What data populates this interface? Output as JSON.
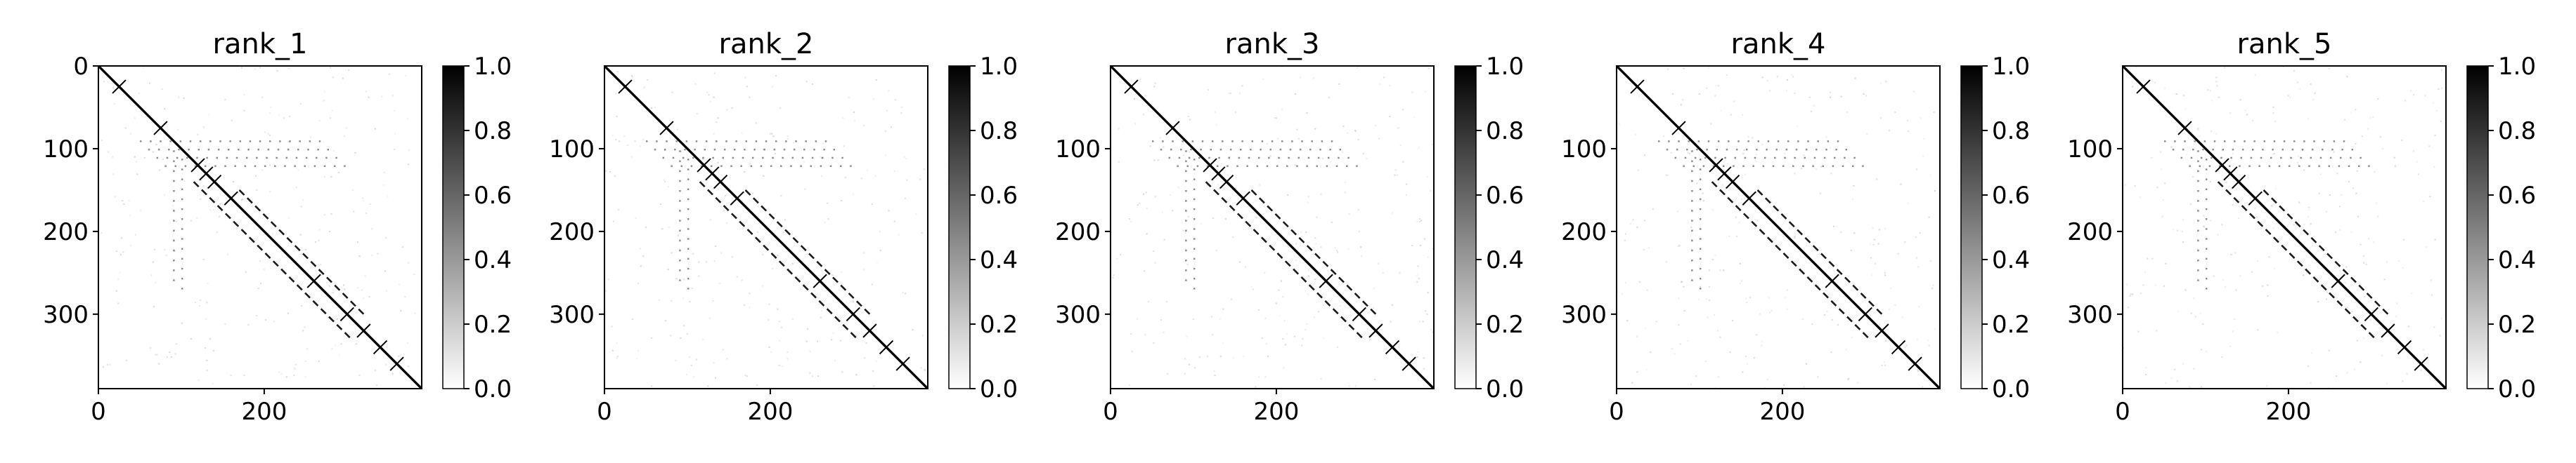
{
  "colors": {
    "cmap_low": "#ffffff",
    "cmap_high": "#000000",
    "axes": "#000000",
    "background": "#ffffff"
  },
  "colorbar": {
    "range": [
      0.0,
      1.0
    ],
    "ticks": [
      0.0,
      0.2,
      0.4,
      0.6,
      0.8,
      1.0
    ],
    "tick_labels": [
      "0.0",
      "0.2",
      "0.4",
      "0.6",
      "0.8",
      "1.0"
    ]
  },
  "chart_data": [
    {
      "type": "heatmap",
      "title": "rank_1",
      "n": 390,
      "xlim": [
        0,
        390
      ],
      "ylim": [
        390,
        0
      ],
      "xticks": [
        0,
        200
      ],
      "xtick_labels": [
        "0",
        "200"
      ],
      "yticks": [
        0,
        100,
        200,
        300
      ],
      "ytick_labels": [
        "0",
        "100",
        "200",
        "300"
      ],
      "grid": false,
      "colorscale": "Greys",
      "value_range": [
        0.0,
        1.0
      ],
      "pattern": {
        "main_diagonal": 1.0,
        "off_diagonal_bands": [
          {
            "offset": 20,
            "start": 150,
            "end": 300,
            "value": 0.9
          },
          {
            "offset": -25,
            "start": 140,
            "end": 330,
            "value": 0.9
          }
        ],
        "crossings_at": [
          25,
          75,
          120,
          130,
          140,
          160,
          260,
          300,
          320,
          340,
          360
        ],
        "sparse_rows": [
          90,
          100,
          110,
          120
        ],
        "sparse_cols": [
          90,
          100
        ]
      }
    },
    {
      "type": "heatmap",
      "title": "rank_2",
      "n": 390,
      "xlim": [
        0,
        390
      ],
      "ylim": [
        390,
        0
      ],
      "xticks": [
        0,
        200
      ],
      "xtick_labels": [
        "0",
        "200"
      ],
      "yticks": [
        100,
        200,
        300
      ],
      "ytick_labels": [
        "100",
        "200",
        "300"
      ],
      "grid": false,
      "colorscale": "Greys",
      "value_range": [
        0.0,
        1.0
      ],
      "pattern": {
        "main_diagonal": 1.0,
        "off_diagonal_bands": [
          {
            "offset": 20,
            "start": 150,
            "end": 300,
            "value": 0.9
          },
          {
            "offset": -25,
            "start": 140,
            "end": 330,
            "value": 0.9
          }
        ],
        "crossings_at": [
          25,
          75,
          120,
          130,
          140,
          160,
          260,
          300,
          320,
          340,
          360
        ],
        "sparse_rows": [
          90,
          100,
          110,
          120
        ],
        "sparse_cols": [
          90,
          100
        ]
      }
    },
    {
      "type": "heatmap",
      "title": "rank_3",
      "n": 390,
      "xlim": [
        0,
        390
      ],
      "ylim": [
        390,
        0
      ],
      "xticks": [
        0,
        200
      ],
      "xtick_labels": [
        "0",
        "200"
      ],
      "yticks": [
        100,
        200,
        300
      ],
      "ytick_labels": [
        "100",
        "200",
        "300"
      ],
      "grid": false,
      "colorscale": "Greys",
      "value_range": [
        0.0,
        1.0
      ],
      "pattern": {
        "main_diagonal": 1.0,
        "off_diagonal_bands": [
          {
            "offset": 20,
            "start": 150,
            "end": 300,
            "value": 0.9
          },
          {
            "offset": -25,
            "start": 140,
            "end": 330,
            "value": 0.9
          }
        ],
        "crossings_at": [
          25,
          75,
          120,
          130,
          140,
          160,
          260,
          300,
          320,
          340,
          360
        ],
        "sparse_rows": [
          90,
          100,
          110,
          120
        ],
        "sparse_cols": [
          90,
          100
        ]
      }
    },
    {
      "type": "heatmap",
      "title": "rank_4",
      "n": 390,
      "xlim": [
        0,
        390
      ],
      "ylim": [
        390,
        0
      ],
      "xticks": [
        0,
        200
      ],
      "xtick_labels": [
        "0",
        "200"
      ],
      "yticks": [
        100,
        200,
        300
      ],
      "ytick_labels": [
        "100",
        "200",
        "300"
      ],
      "grid": false,
      "colorscale": "Greys",
      "value_range": [
        0.0,
        1.0
      ],
      "pattern": {
        "main_diagonal": 1.0,
        "off_diagonal_bands": [
          {
            "offset": 20,
            "start": 150,
            "end": 300,
            "value": 0.9
          },
          {
            "offset": -25,
            "start": 140,
            "end": 330,
            "value": 0.9
          }
        ],
        "crossings_at": [
          25,
          75,
          120,
          130,
          140,
          160,
          260,
          300,
          320,
          340,
          360
        ],
        "sparse_rows": [
          90,
          100,
          110,
          120
        ],
        "sparse_cols": [
          90,
          100
        ]
      }
    },
    {
      "type": "heatmap",
      "title": "rank_5",
      "n": 390,
      "xlim": [
        0,
        390
      ],
      "ylim": [
        390,
        0
      ],
      "xticks": [
        0,
        200
      ],
      "xtick_labels": [
        "0",
        "200"
      ],
      "yticks": [
        100,
        200,
        300
      ],
      "ytick_labels": [
        "100",
        "200",
        "300"
      ],
      "grid": false,
      "colorscale": "Greys",
      "value_range": [
        0.0,
        1.0
      ],
      "pattern": {
        "main_diagonal": 1.0,
        "off_diagonal_bands": [
          {
            "offset": 20,
            "start": 150,
            "end": 300,
            "value": 0.9
          },
          {
            "offset": -25,
            "start": 140,
            "end": 330,
            "value": 0.9
          }
        ],
        "crossings_at": [
          25,
          75,
          120,
          130,
          140,
          160,
          260,
          300,
          320,
          340,
          360
        ],
        "sparse_rows": [
          90,
          100,
          110,
          120
        ],
        "sparse_cols": [
          90,
          100
        ]
      }
    }
  ]
}
